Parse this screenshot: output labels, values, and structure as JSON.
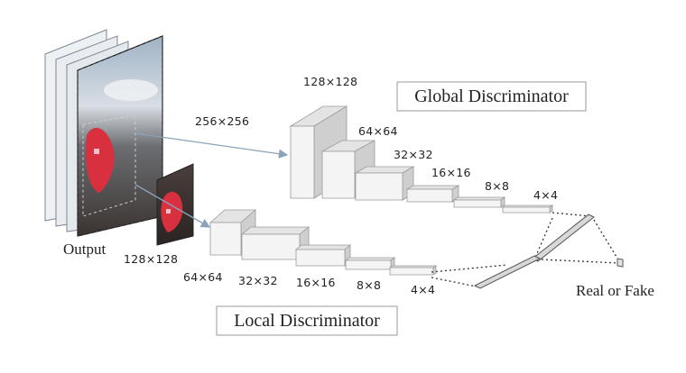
{
  "global": {
    "title": "Global Discriminator",
    "input_size": "256×256",
    "layer_sizes": [
      "128×128",
      "64×64",
      "32×32",
      "16×16",
      "8×8",
      "4×4"
    ]
  },
  "local": {
    "title": "Local Discriminator",
    "input_size": "128×128",
    "layer_sizes": [
      "64×64",
      "32×32",
      "16×16",
      "8×8",
      "4×4"
    ]
  },
  "labels": {
    "output": "Output",
    "result": "Real or Fake"
  },
  "colors": {
    "block_front": "#f4f4f4",
    "block_top": "#e4e4e4",
    "block_side": "#cfcfcf",
    "arrow": "#8aa2bb",
    "mask_red": "#d9303f"
  }
}
